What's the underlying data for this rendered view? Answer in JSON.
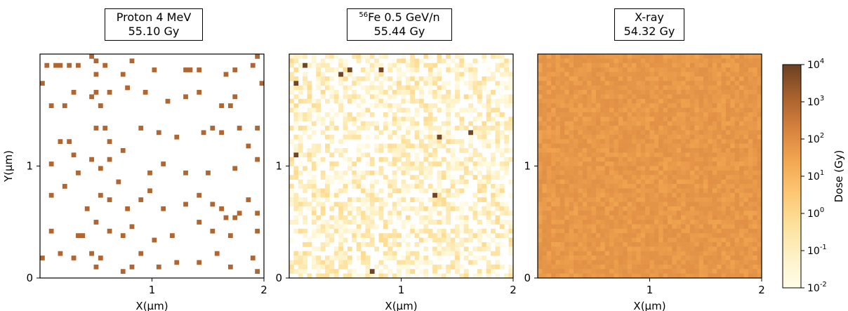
{
  "figure": {
    "panels": [
      {
        "id": "proton",
        "title_pre": "",
        "title_sup": "",
        "title_main": "Proton 4 MeV",
        "dose": "55.10 Gy",
        "xlabel": "X(µm)",
        "ylabel": "Y(µm)"
      },
      {
        "id": "fe",
        "title_pre": "",
        "title_sup": "56",
        "title_main": "Fe 0.5 GeV/n",
        "dose": "55.44 Gy",
        "xlabel": "X(µm)",
        "ylabel": ""
      },
      {
        "id": "xray",
        "title_pre": "",
        "title_sup": "",
        "title_main": "X-ray",
        "dose": "54.32 Gy",
        "xlabel": "X(µm)",
        "ylabel": ""
      }
    ],
    "colorbar": {
      "label": "Dose (Gy)",
      "ticks": [
        "10",
        "10",
        "10",
        "10",
        "10",
        "10",
        "10"
      ],
      "exponents": [
        "-2",
        "-1",
        "0",
        "1",
        "2",
        "3",
        "4"
      ]
    }
  },
  "chart_data": [
    {
      "type": "heatmap",
      "title": "Proton 4 MeV 55.10 Gy",
      "xlabel": "X(µm)",
      "ylabel": "Y(µm)",
      "xlim": [
        0,
        2
      ],
      "ylim": [
        0,
        2
      ],
      "x_ticks": [
        "1",
        "2"
      ],
      "y_ticks": [
        "0",
        "1"
      ],
      "grid_size": [
        50,
        50
      ],
      "scale": "log",
      "zlim": [
        0.01,
        10000
      ],
      "background_dose": 0,
      "hit_dose_approx": 1000,
      "description_of_values": "sparse isolated hit pixels of ~1000 Gy; others 0",
      "hits": [
        [
          0.05,
          1.9
        ],
        [
          0.12,
          1.9
        ],
        [
          0.18,
          1.9
        ],
        [
          0.24,
          1.9
        ],
        [
          0.35,
          1.88
        ],
        [
          0.44,
          1.96
        ],
        [
          0.48,
          1.92
        ],
        [
          0.5,
          1.83
        ],
        [
          0.57,
          1.9
        ],
        [
          0.72,
          1.8
        ],
        [
          0.82,
          1.94
        ],
        [
          1.0,
          1.84
        ],
        [
          1.3,
          1.85
        ],
        [
          1.35,
          1.84
        ],
        [
          1.4,
          1.84
        ],
        [
          1.65,
          1.82
        ],
        [
          1.75,
          1.84
        ],
        [
          1.93,
          1.96
        ],
        [
          1.88,
          1.88
        ],
        [
          0.02,
          1.72
        ],
        [
          0.1,
          1.55
        ],
        [
          0.2,
          1.55
        ],
        [
          0.28,
          1.66
        ],
        [
          0.44,
          1.62
        ],
        [
          0.5,
          1.65
        ],
        [
          0.52,
          1.52
        ],
        [
          0.6,
          1.65
        ],
        [
          0.78,
          1.7
        ],
        [
          0.92,
          1.64
        ],
        [
          1.12,
          1.58
        ],
        [
          1.28,
          1.6
        ],
        [
          1.42,
          1.67
        ],
        [
          1.62,
          1.52
        ],
        [
          1.7,
          1.54
        ],
        [
          1.72,
          1.6
        ],
        [
          1.96,
          1.72
        ],
        [
          0.18,
          1.22
        ],
        [
          0.25,
          1.2
        ],
        [
          0.48,
          1.32
        ],
        [
          0.58,
          1.32
        ],
        [
          0.6,
          1.22
        ],
        [
          0.72,
          1.15
        ],
        [
          0.88,
          1.32
        ],
        [
          1.05,
          1.3
        ],
        [
          1.2,
          1.25
        ],
        [
          1.44,
          1.3
        ],
        [
          1.52,
          1.32
        ],
        [
          1.62,
          1.28
        ],
        [
          1.78,
          1.32
        ],
        [
          1.85,
          1.18
        ],
        [
          1.94,
          1.34
        ],
        [
          0.08,
          1.0
        ],
        [
          0.28,
          1.08
        ],
        [
          0.35,
          0.92
        ],
        [
          0.45,
          1.05
        ],
        [
          0.55,
          0.98
        ],
        [
          0.62,
          1.06
        ],
        [
          0.68,
          0.85
        ],
        [
          0.98,
          0.94
        ],
        [
          1.08,
          1.03
        ],
        [
          1.3,
          0.95
        ],
        [
          1.48,
          0.92
        ],
        [
          1.72,
          0.98
        ],
        [
          1.92,
          1.04
        ],
        [
          0.1,
          0.72
        ],
        [
          0.22,
          0.8
        ],
        [
          0.42,
          0.6
        ],
        [
          0.52,
          0.75
        ],
        [
          0.6,
          0.7
        ],
        [
          0.78,
          0.62
        ],
        [
          0.88,
          0.7
        ],
        [
          0.98,
          0.78
        ],
        [
          1.1,
          0.62
        ],
        [
          1.28,
          0.65
        ],
        [
          1.42,
          0.72
        ],
        [
          1.55,
          0.65
        ],
        [
          1.62,
          0.6
        ],
        [
          1.65,
          0.55
        ],
        [
          1.72,
          0.55
        ],
        [
          1.78,
          0.58
        ],
        [
          1.85,
          0.7
        ],
        [
          1.92,
          0.56
        ],
        [
          0.08,
          0.42
        ],
        [
          0.32,
          0.38
        ],
        [
          0.38,
          0.36
        ],
        [
          0.5,
          0.5
        ],
        [
          0.6,
          0.42
        ],
        [
          0.72,
          0.36
        ],
        [
          0.82,
          0.46
        ],
        [
          1.02,
          0.32
        ],
        [
          1.18,
          0.36
        ],
        [
          1.4,
          0.5
        ],
        [
          1.55,
          0.4
        ],
        [
          1.7,
          0.36
        ],
        [
          1.95,
          0.42
        ],
        [
          0.02,
          0.16
        ],
        [
          0.18,
          0.22
        ],
        [
          0.3,
          0.18
        ],
        [
          0.45,
          0.22
        ],
        [
          0.5,
          0.1
        ],
        [
          0.55,
          0.16
        ],
        [
          0.72,
          0.06
        ],
        [
          0.82,
          0.1
        ],
        [
          0.9,
          0.2
        ],
        [
          1.05,
          0.08
        ],
        [
          1.22,
          0.14
        ],
        [
          1.42,
          0.12
        ],
        [
          1.58,
          0.22
        ],
        [
          1.68,
          0.08
        ],
        [
          1.88,
          0.18
        ],
        [
          1.95,
          0.06
        ]
      ]
    },
    {
      "type": "heatmap",
      "title": "56Fe 0.5 GeV/n 55.44 Gy",
      "xlabel": "X(µm)",
      "ylabel": "",
      "xlim": [
        0,
        2
      ],
      "ylim": [
        0,
        2
      ],
      "x_ticks": [
        "1",
        "2"
      ],
      "y_ticks": [
        "0",
        "1"
      ],
      "grid_size": [
        50,
        50
      ],
      "scale": "log",
      "zlim": [
        0.01,
        10000
      ],
      "background_dose_range": [
        0.01,
        1
      ],
      "description_of_values": "faint low-dose halo pixels (~0.01-1 Gy) scattered, with isolated core hits of ~10000 Gy",
      "core_hits": [
        [
          0.12,
          1.9
        ],
        [
          0.45,
          1.83
        ],
        [
          0.53,
          1.86
        ],
        [
          0.8,
          1.86
        ],
        [
          0.05,
          1.73
        ],
        [
          1.35,
          1.27
        ],
        [
          1.6,
          1.28
        ],
        [
          0.06,
          1.08
        ],
        [
          1.3,
          0.72
        ],
        [
          0.74,
          0.05
        ]
      ],
      "core_hit_dose_approx": 8000
    },
    {
      "type": "heatmap",
      "title": "X-ray 54.32 Gy",
      "xlabel": "X(µm)",
      "ylabel": "",
      "xlim": [
        0,
        2
      ],
      "ylim": [
        0,
        2
      ],
      "x_ticks": [
        "1",
        "2"
      ],
      "y_ticks": [
        "0",
        "1"
      ],
      "grid_size": [
        50,
        50
      ],
      "scale": "log",
      "zlim": [
        0.01,
        10000
      ],
      "uniform_dose_approx": [
        30,
        90
      ],
      "description_of_values": "uniform dose field ~55 Gy with small pixel-to-pixel variation"
    }
  ],
  "colorbar": {
    "type": "colorbar",
    "label": "Dose (Gy)",
    "scale": "log",
    "range": [
      0.01,
      10000
    ],
    "ticks": [
      0.01,
      0.1,
      1,
      10,
      100,
      1000,
      10000
    ],
    "colormap": [
      "#fffde9",
      "#fdf1c6",
      "#fde09a",
      "#fdc672",
      "#f2a650",
      "#d6813e",
      "#a8612d",
      "#6a4024"
    ]
  }
}
